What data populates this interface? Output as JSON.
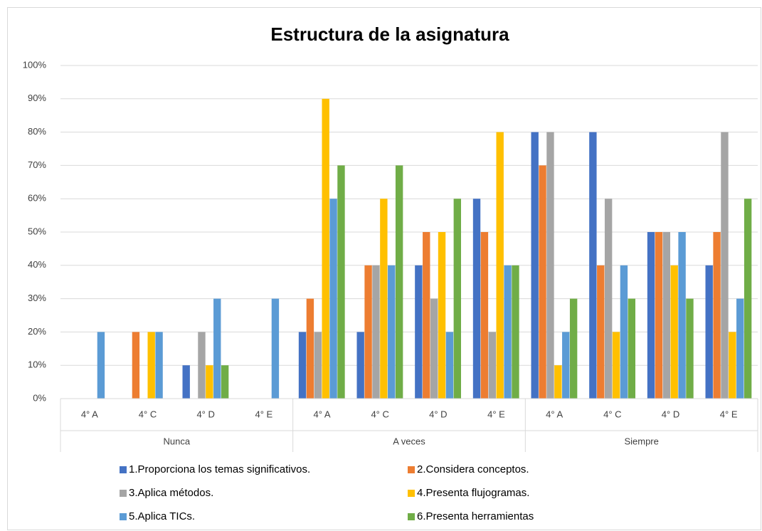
{
  "chart_data": {
    "type": "bar",
    "title": "Estructura de la asignatura",
    "categories": [
      "4° A",
      "4° C",
      "4° D",
      "4° E",
      "4° A",
      "4° C",
      "4° D",
      "4° E",
      "4° A",
      "4° C",
      "4° D",
      "4° E"
    ],
    "category_groups": [
      "Nunca",
      "A veces",
      "Siempre"
    ],
    "series": [
      {
        "name": "1.Proporciona los temas significativos.",
        "color": "#4472c4",
        "values": [
          0,
          0,
          10,
          0,
          20,
          20,
          40,
          60,
          80,
          80,
          50,
          40
        ]
      },
      {
        "name": "2.Considera conceptos.",
        "color": "#ed7d31",
        "values": [
          0,
          20,
          0,
          0,
          30,
          40,
          50,
          50,
          70,
          40,
          50,
          50
        ]
      },
      {
        "name": "3.Aplica métodos.",
        "color": "#a5a5a5",
        "values": [
          0,
          0,
          20,
          0,
          20,
          40,
          30,
          20,
          80,
          60,
          50,
          80
        ]
      },
      {
        "name": "4.Presenta flujogramas.",
        "color": "#ffc000",
        "values": [
          0,
          20,
          10,
          0,
          90,
          60,
          50,
          80,
          10,
          20,
          40,
          20
        ]
      },
      {
        "name": "5.Aplica TICs.",
        "color": "#5b9bd5",
        "values": [
          20,
          20,
          30,
          30,
          60,
          40,
          20,
          40,
          20,
          40,
          50,
          30
        ]
      },
      {
        "name": "6.Presenta herramientas",
        "color": "#70ad47",
        "values": [
          0,
          0,
          10,
          0,
          70,
          70,
          60,
          40,
          30,
          30,
          30,
          60
        ]
      }
    ],
    "ylim": [
      0,
      100
    ],
    "yticks": [
      {
        "value": 0,
        "label": "0%"
      },
      {
        "value": 10,
        "label": "10%"
      },
      {
        "value": 20,
        "label": "20%"
      },
      {
        "value": 30,
        "label": "30%"
      },
      {
        "value": 40,
        "label": "40%"
      },
      {
        "value": 50,
        "label": "50%"
      },
      {
        "value": 60,
        "label": "60%"
      },
      {
        "value": 70,
        "label": "70%"
      },
      {
        "value": 80,
        "label": "80%"
      },
      {
        "value": 90,
        "label": "90%"
      },
      {
        "value": 100,
        "label": "100%"
      }
    ],
    "grid": true
  }
}
